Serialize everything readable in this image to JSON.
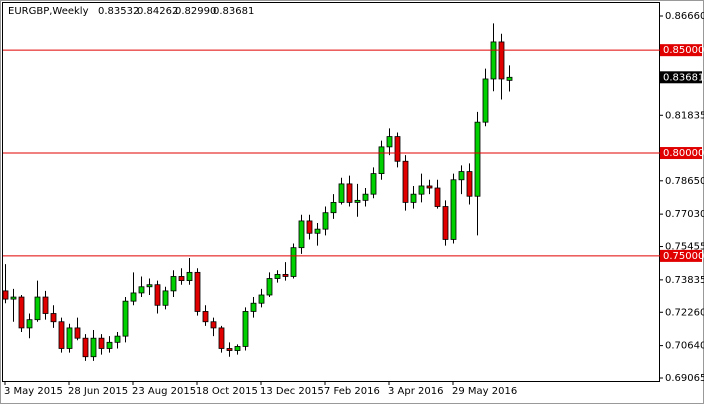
{
  "header": {
    "symbol": "EURGBP,Weekly",
    "ohlc": [
      0.83532,
      0.84262,
      {
        "value": 0.8299,
        "label": "0.82990"
      },
      0.83681
    ]
  },
  "chart_data": {
    "type": "candlestick",
    "categories": [
      "3 May 2015",
      null,
      null,
      null,
      null,
      null,
      null,
      null,
      "28 Jun 2015",
      null,
      null,
      null,
      null,
      null,
      null,
      null,
      "23 Aug 2015",
      null,
      null,
      null,
      null,
      null,
      null,
      null,
      "18 Oct 2015",
      null,
      null,
      null,
      null,
      null,
      null,
      null,
      "13 Dec 2015",
      null,
      null,
      null,
      null,
      null,
      null,
      null,
      "7 Feb 2016",
      null,
      null,
      null,
      null,
      null,
      null,
      null,
      "3 Apr 2016",
      null,
      null,
      null,
      null,
      null,
      null,
      null,
      "29 May 2016",
      null,
      null,
      null,
      null,
      null,
      null,
      null
    ],
    "series": [
      {
        "name": "EURGBP",
        "up_color": "#00d000",
        "down_color": "#e00000",
        "open": [
          0.733,
          0.729,
          0.73,
          0.715,
          0.719,
          0.73,
          0.722,
          0.718,
          0.705,
          0.715,
          0.71,
          0.701,
          0.71,
          0.705,
          0.708,
          0.711,
          0.728,
          0.732,
          0.735,
          0.736,
          0.726,
          0.733,
          0.74,
          0.738,
          0.742,
          0.723,
          0.718,
          0.715,
          0.705,
          0.704,
          0.706,
          0.723,
          0.727,
          0.731,
          0.739,
          0.741,
          0.74,
          0.754,
          0.767,
          0.761,
          0.763,
          0.771,
          0.776,
          0.785,
          0.776,
          0.777,
          0.78,
          0.79,
          0.803,
          0.808,
          0.796,
          0.776,
          0.78,
          0.784,
          0.783,
          0.774,
          0.758,
          0.787,
          0.791,
          0.779,
          0.815,
          0.836,
          0.854,
          0.83532
        ],
        "high": [
          0.746,
          0.734,
          0.731,
          0.722,
          0.738,
          0.733,
          0.726,
          0.72,
          0.717,
          0.72,
          0.712,
          0.714,
          0.712,
          0.711,
          0.713,
          0.73,
          0.742,
          0.74,
          0.739,
          0.738,
          0.735,
          0.743,
          0.744,
          0.749,
          0.744,
          0.726,
          0.72,
          0.716,
          0.708,
          0.707,
          0.725,
          0.73,
          0.734,
          0.742,
          0.743,
          0.747,
          0.756,
          0.77,
          0.77,
          0.766,
          0.774,
          0.78,
          0.788,
          0.789,
          0.785,
          0.783,
          0.793,
          0.806,
          0.812,
          0.81,
          0.799,
          0.784,
          0.79,
          0.787,
          0.787,
          0.777,
          0.79,
          0.794,
          0.795,
          0.82,
          0.841,
          0.863,
          0.858,
          0.84262
        ],
        "low": [
          0.727,
          0.718,
          0.713,
          0.71,
          0.718,
          0.719,
          0.715,
          0.703,
          0.703,
          0.709,
          0.699,
          0.699,
          0.702,
          0.703,
          0.705,
          0.708,
          0.726,
          0.73,
          0.731,
          0.722,
          0.724,
          0.73,
          0.736,
          0.736,
          0.721,
          0.716,
          0.711,
          0.703,
          0.701,
          0.702,
          0.704,
          0.72,
          0.725,
          0.73,
          0.737,
          0.738,
          0.739,
          0.751,
          0.758,
          0.755,
          0.76,
          0.768,
          0.775,
          0.774,
          0.769,
          0.774,
          0.778,
          0.787,
          0.799,
          0.793,
          0.772,
          0.773,
          0.776,
          0.78,
          0.773,
          0.755,
          0.756,
          0.78,
          0.775,
          0.76,
          0.813,
          0.83,
          0.826,
          0.8299
        ],
        "close": [
          0.729,
          0.73,
          0.715,
          0.719,
          0.73,
          0.722,
          0.718,
          0.705,
          0.715,
          0.71,
          0.701,
          0.71,
          0.705,
          0.708,
          0.711,
          0.728,
          0.732,
          0.735,
          0.736,
          0.726,
          0.733,
          0.74,
          0.738,
          0.742,
          0.723,
          0.718,
          0.715,
          0.705,
          0.704,
          0.706,
          0.723,
          0.727,
          0.731,
          0.739,
          0.741,
          0.74,
          0.754,
          0.767,
          0.761,
          0.763,
          0.771,
          0.776,
          0.785,
          0.776,
          0.777,
          0.78,
          0.79,
          0.803,
          0.808,
          0.796,
          0.776,
          0.78,
          0.784,
          0.783,
          0.774,
          0.758,
          0.787,
          0.791,
          0.779,
          0.815,
          0.836,
          0.854,
          0.836,
          0.83681
        ]
      }
    ],
    "ylim": [
      0.68871,
      0.87438
    ],
    "yticks": [
      {
        "value": 0.8666,
        "label": "0.86660"
      },
      {
        "value": 0.81835,
        "label": "0.81835"
      },
      {
        "value": 0.7865,
        "label": "0.78650"
      },
      {
        "value": 0.7703,
        "label": "0.77030"
      },
      {
        "value": 0.75455,
        "label": "0.75455"
      },
      {
        "value": 0.73835,
        "label": "0.73835"
      },
      {
        "value": 0.7226,
        "label": "0.72260"
      },
      {
        "value": 0.7064,
        "label": "0.70640"
      },
      {
        "value": 0.69065,
        "label": "0.69065"
      }
    ],
    "levels": [
      {
        "value": 0.85,
        "label": "0.85000"
      },
      {
        "value": 0.8,
        "label": "0.80000"
      },
      {
        "value": 0.75,
        "label": "0.75000"
      }
    ],
    "level_color": "#e00000",
    "current_price": {
      "value": 0.83681,
      "label": "0.83681"
    }
  }
}
